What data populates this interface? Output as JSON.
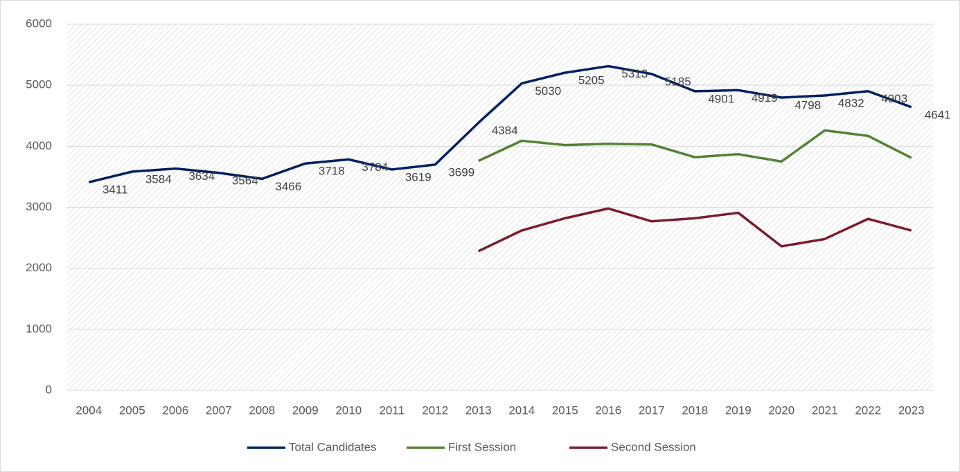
{
  "chart_data": {
    "type": "line",
    "categories": [
      "2004",
      "2005",
      "2006",
      "2007",
      "2008",
      "2009",
      "2010",
      "2011",
      "2012",
      "2013",
      "2014",
      "2015",
      "2016",
      "2017",
      "2018",
      "2019",
      "2020",
      "2021",
      "2022",
      "2023"
    ],
    "series": [
      {
        "name": "Total Candidates",
        "color": "#002060",
        "values": [
          3411,
          3584,
          3634,
          3564,
          3466,
          3718,
          3784,
          3619,
          3699,
          4384,
          5030,
          5205,
          5313,
          5185,
          4901,
          4919,
          4798,
          4832,
          4903,
          4641
        ]
      },
      {
        "name": "First Session",
        "color": "#548235",
        "values": [
          null,
          null,
          null,
          null,
          null,
          null,
          null,
          null,
          null,
          3760,
          4090,
          4020,
          4040,
          4030,
          3820,
          3870,
          3750,
          4260,
          4170,
          3810
        ]
      },
      {
        "name": "Second Session",
        "color": "#7b1c2e",
        "values": [
          null,
          null,
          null,
          null,
          null,
          null,
          null,
          null,
          null,
          2280,
          2620,
          2820,
          2980,
          2770,
          2820,
          2910,
          2360,
          2480,
          2810,
          2620
        ]
      }
    ],
    "ylim": [
      0,
      6000
    ],
    "yticks": [
      0,
      1000,
      2000,
      3000,
      4000,
      5000,
      6000
    ],
    "grid": true,
    "legend": "bottom"
  }
}
